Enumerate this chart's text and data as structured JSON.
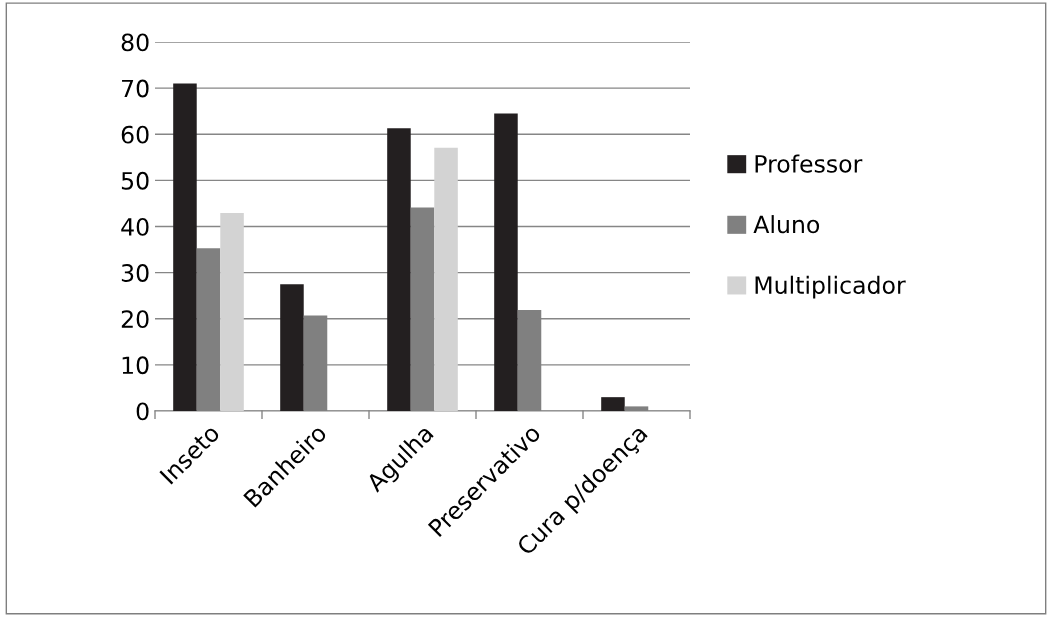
{
  "chart_data": {
    "type": "bar",
    "categories": [
      "Inseto",
      "Banheiro",
      "Agulha",
      "Preservativo",
      "Cura p/doença"
    ],
    "series": [
      {
        "name": "Professor",
        "color": "#231f20",
        "values": [
          71,
          27.5,
          61.3,
          64.5,
          3
        ]
      },
      {
        "name": "Aluno",
        "color": "#808080",
        "values": [
          35.3,
          20.7,
          44.1,
          21.9,
          1
        ]
      },
      {
        "name": "Multiplicador",
        "color": "#d3d3d3",
        "values": [
          42.9,
          0,
          57.1,
          0,
          0
        ]
      }
    ],
    "ylim": [
      0,
      80
    ],
    "yticks": [
      0,
      10,
      20,
      30,
      40,
      50,
      60,
      70,
      80
    ],
    "grid": "y",
    "legend": "right"
  }
}
